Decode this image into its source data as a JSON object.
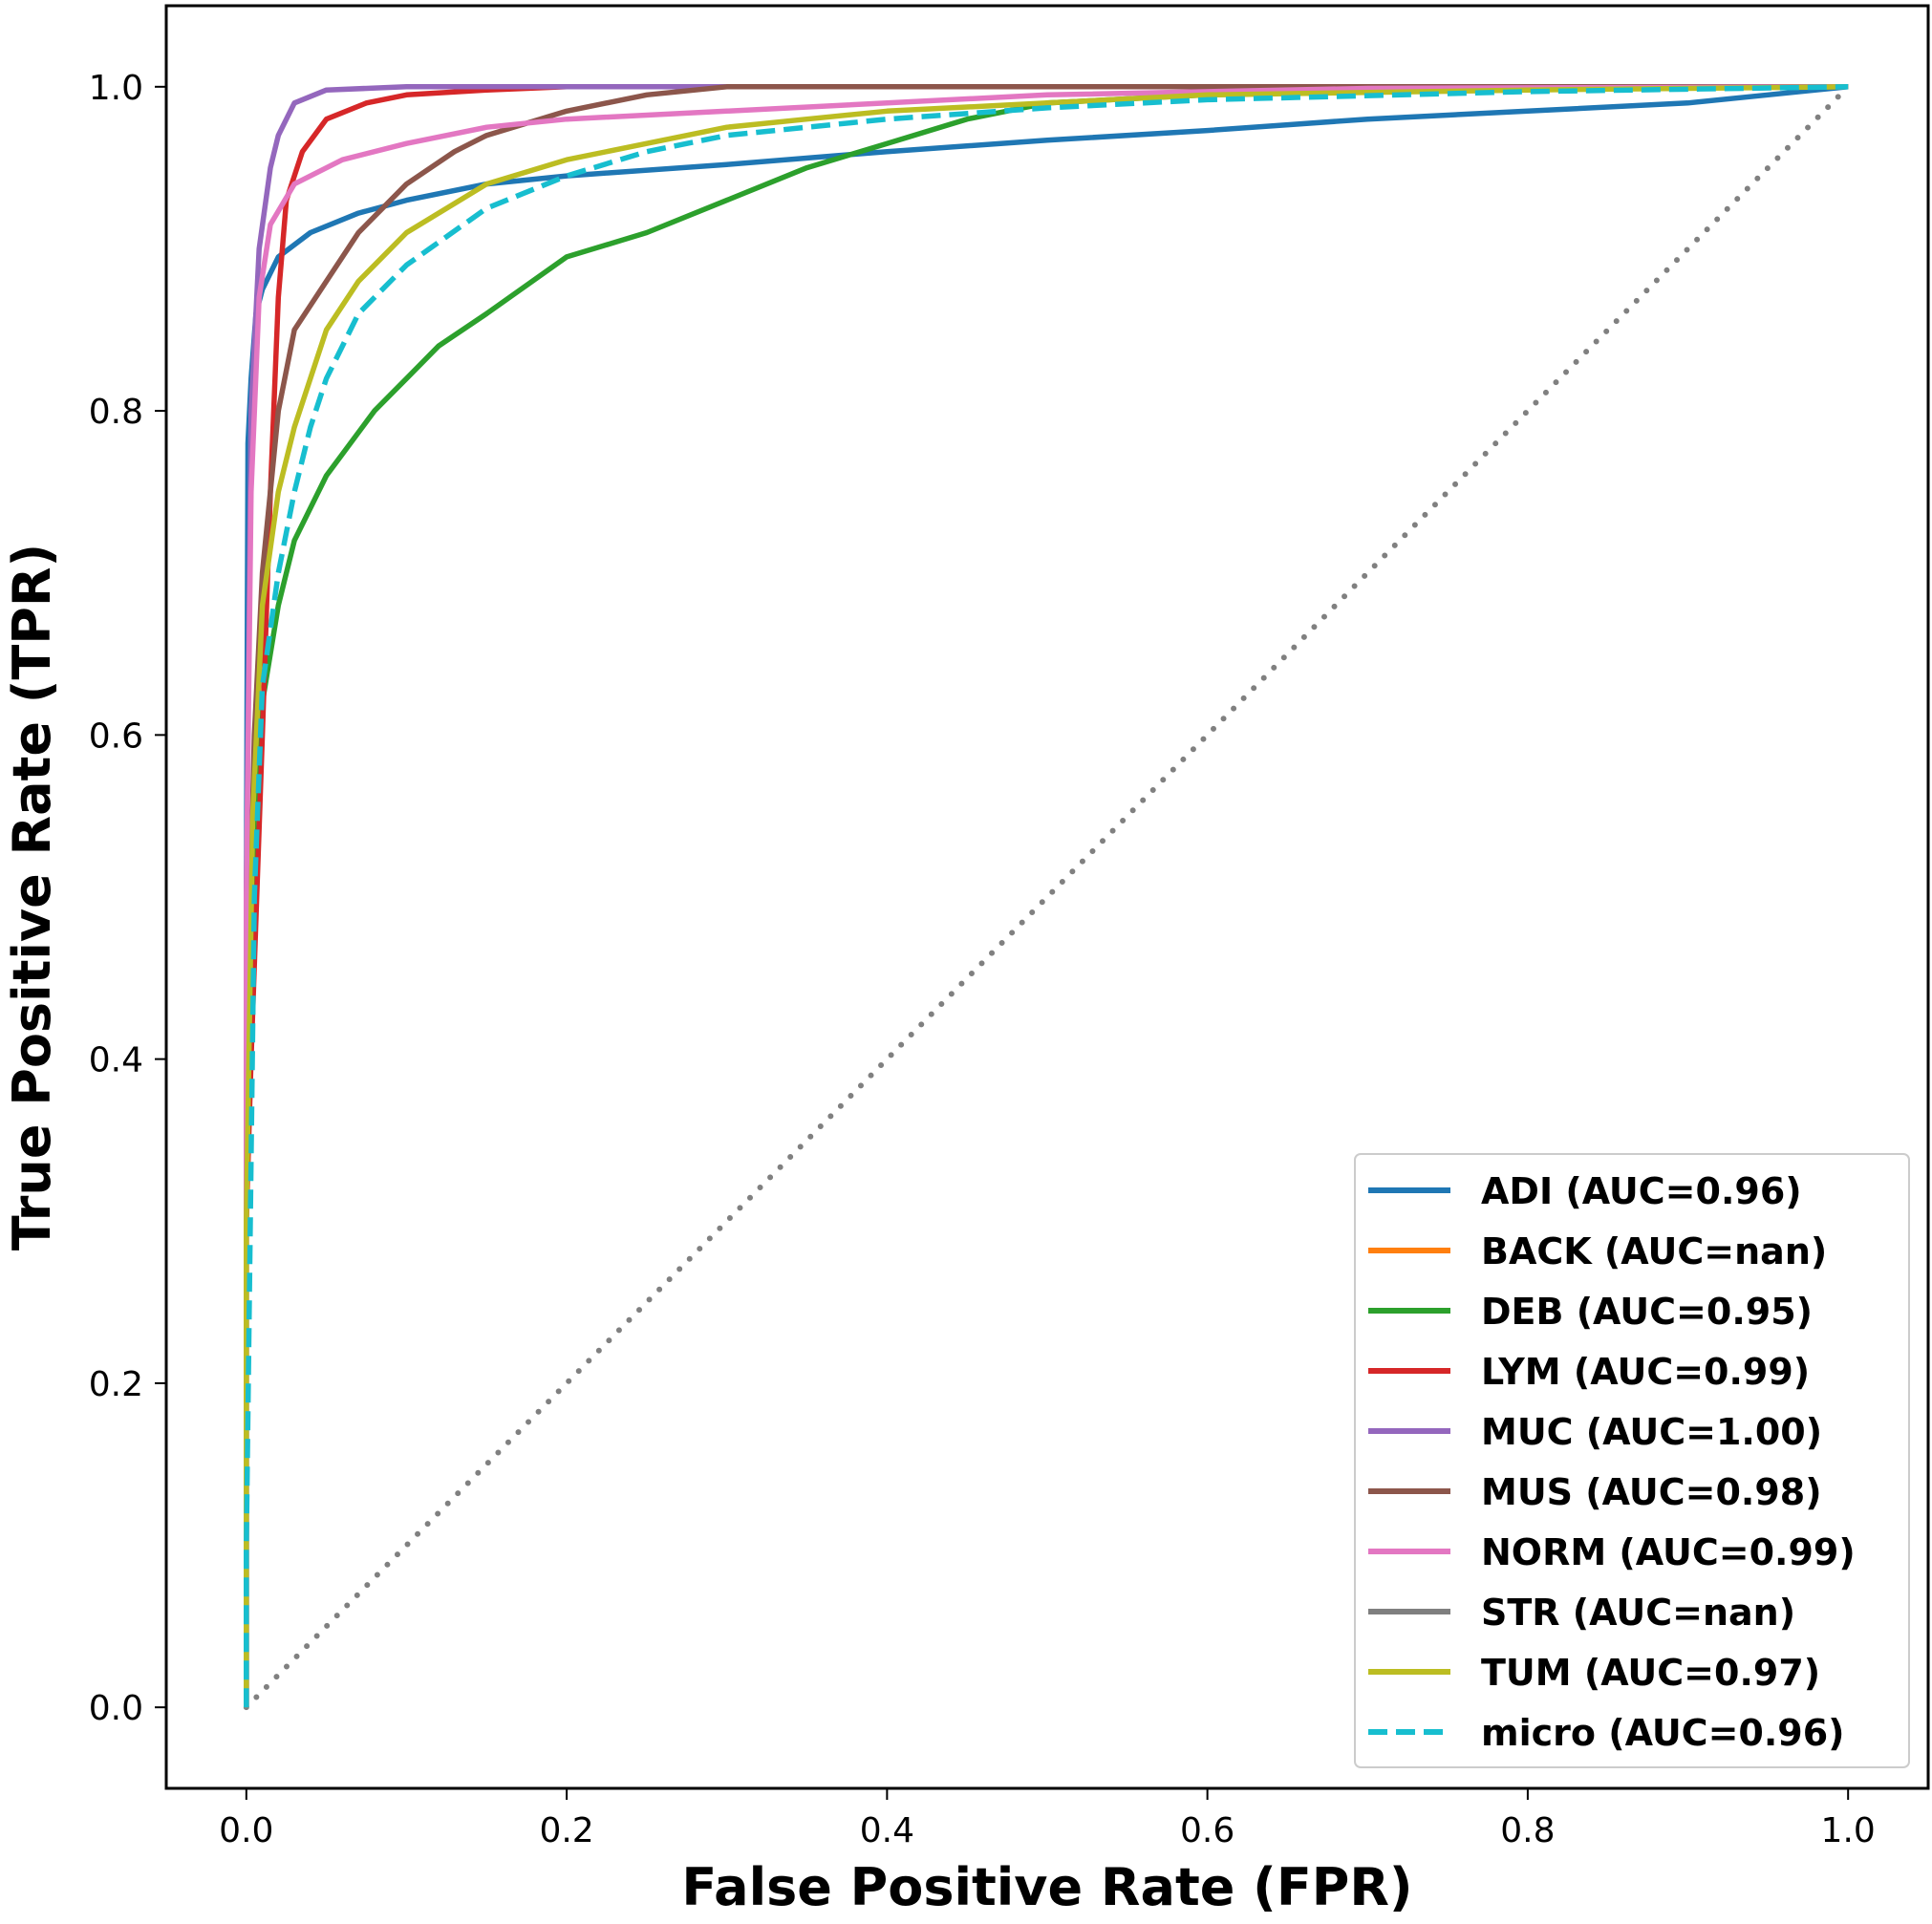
{
  "chart_data": {
    "type": "line",
    "title": "",
    "xlabel": "False Positive Rate (FPR)",
    "ylabel": "True Positive Rate (TPR)",
    "xlim": [
      -0.05,
      1.05
    ],
    "ylim": [
      -0.05,
      1.05
    ],
    "x_ticks": [
      0.0,
      0.2,
      0.4,
      0.6,
      0.8,
      1.0
    ],
    "y_ticks": [
      0.0,
      0.2,
      0.4,
      0.6,
      0.8,
      1.0
    ],
    "x_tick_labels": [
      "0.0",
      "0.2",
      "0.4",
      "0.6",
      "0.8",
      "1.0"
    ],
    "y_tick_labels": [
      "0.0",
      "0.2",
      "0.4",
      "0.6",
      "0.8",
      "1.0"
    ],
    "grid": false,
    "legend_position": "lower-right",
    "diagonal": {
      "style": "dotted",
      "color": "#808080",
      "points": [
        [
          0,
          0
        ],
        [
          1,
          1
        ]
      ]
    },
    "series": [
      {
        "name": "ADI (AUC=0.96)",
        "color": "#1f77b4",
        "style": "solid",
        "points": [
          [
            0,
            0
          ],
          [
            0,
            0.5
          ],
          [
            0.001,
            0.78
          ],
          [
            0.003,
            0.82
          ],
          [
            0.006,
            0.86
          ],
          [
            0.01,
            0.875
          ],
          [
            0.02,
            0.895
          ],
          [
            0.04,
            0.91
          ],
          [
            0.07,
            0.922
          ],
          [
            0.1,
            0.93
          ],
          [
            0.15,
            0.94
          ],
          [
            0.2,
            0.945
          ],
          [
            0.3,
            0.952
          ],
          [
            0.4,
            0.96
          ],
          [
            0.5,
            0.967
          ],
          [
            0.6,
            0.973
          ],
          [
            0.7,
            0.98
          ],
          [
            0.8,
            0.985
          ],
          [
            0.9,
            0.99
          ],
          [
            0.95,
            0.995
          ],
          [
            1,
            1
          ]
        ]
      },
      {
        "name": "BACK (AUC=nan)",
        "color": "#ff7f0e",
        "style": "solid",
        "points": []
      },
      {
        "name": "DEB (AUC=0.95)",
        "color": "#2ca02c",
        "style": "solid",
        "points": [
          [
            0,
            0
          ],
          [
            0,
            0.3
          ],
          [
            0.005,
            0.55
          ],
          [
            0.01,
            0.62
          ],
          [
            0.02,
            0.68
          ],
          [
            0.03,
            0.72
          ],
          [
            0.05,
            0.76
          ],
          [
            0.08,
            0.8
          ],
          [
            0.1,
            0.82
          ],
          [
            0.12,
            0.84
          ],
          [
            0.15,
            0.86
          ],
          [
            0.2,
            0.895
          ],
          [
            0.25,
            0.91
          ],
          [
            0.3,
            0.93
          ],
          [
            0.35,
            0.95
          ],
          [
            0.4,
            0.965
          ],
          [
            0.45,
            0.98
          ],
          [
            0.5,
            0.99
          ],
          [
            0.6,
            0.995
          ],
          [
            0.8,
            0.999
          ],
          [
            1,
            1
          ]
        ]
      },
      {
        "name": "LYM (AUC=0.99)",
        "color": "#d62728",
        "style": "solid",
        "points": [
          [
            0,
            0
          ],
          [
            0,
            0.3
          ],
          [
            0.003,
            0.4
          ],
          [
            0.01,
            0.6
          ],
          [
            0.015,
            0.75
          ],
          [
            0.02,
            0.87
          ],
          [
            0.025,
            0.93
          ],
          [
            0.035,
            0.96
          ],
          [
            0.05,
            0.98
          ],
          [
            0.075,
            0.99
          ],
          [
            0.1,
            0.995
          ],
          [
            0.15,
            0.998
          ],
          [
            0.2,
            1
          ],
          [
            1,
            1
          ]
        ]
      },
      {
        "name": "MUC (AUC=1.00)",
        "color": "#9467bd",
        "style": "solid",
        "points": [
          [
            0,
            0
          ],
          [
            0,
            0.5
          ],
          [
            0.003,
            0.8
          ],
          [
            0.008,
            0.9
          ],
          [
            0.015,
            0.95
          ],
          [
            0.02,
            0.97
          ],
          [
            0.03,
            0.99
          ],
          [
            0.05,
            0.998
          ],
          [
            0.1,
            1
          ],
          [
            1,
            1
          ]
        ]
      },
      {
        "name": "MUS (AUC=0.98)",
        "color": "#8c564b",
        "style": "solid",
        "points": [
          [
            0,
            0
          ],
          [
            0,
            0.4
          ],
          [
            0.005,
            0.6
          ],
          [
            0.01,
            0.7
          ],
          [
            0.02,
            0.8
          ],
          [
            0.03,
            0.85
          ],
          [
            0.05,
            0.88
          ],
          [
            0.07,
            0.91
          ],
          [
            0.1,
            0.94
          ],
          [
            0.13,
            0.96
          ],
          [
            0.15,
            0.97
          ],
          [
            0.2,
            0.985
          ],
          [
            0.25,
            0.995
          ],
          [
            0.3,
            1
          ],
          [
            1,
            1
          ]
        ]
      },
      {
        "name": "NORM (AUC=0.99)",
        "color": "#e377c2",
        "style": "solid",
        "points": [
          [
            0,
            0
          ],
          [
            0,
            0.5
          ],
          [
            0.003,
            0.75
          ],
          [
            0.008,
            0.87
          ],
          [
            0.015,
            0.915
          ],
          [
            0.03,
            0.94
          ],
          [
            0.06,
            0.955
          ],
          [
            0.1,
            0.965
          ],
          [
            0.15,
            0.975
          ],
          [
            0.2,
            0.98
          ],
          [
            0.3,
            0.985
          ],
          [
            0.5,
            0.995
          ],
          [
            0.7,
            0.999
          ],
          [
            1,
            1
          ]
        ]
      },
      {
        "name": "STR (AUC=nan)",
        "color": "#7f7f7f",
        "style": "solid",
        "points": []
      },
      {
        "name": "TUM (AUC=0.97)",
        "color": "#bcbd22",
        "style": "solid",
        "points": [
          [
            0,
            0
          ],
          [
            0,
            0.3
          ],
          [
            0.004,
            0.55
          ],
          [
            0.01,
            0.68
          ],
          [
            0.02,
            0.75
          ],
          [
            0.03,
            0.79
          ],
          [
            0.05,
            0.85
          ],
          [
            0.07,
            0.88
          ],
          [
            0.1,
            0.91
          ],
          [
            0.15,
            0.94
          ],
          [
            0.2,
            0.955
          ],
          [
            0.25,
            0.965
          ],
          [
            0.3,
            0.975
          ],
          [
            0.35,
            0.98
          ],
          [
            0.4,
            0.985
          ],
          [
            0.5,
            0.99
          ],
          [
            0.6,
            0.995
          ],
          [
            0.8,
            0.998
          ],
          [
            1,
            1
          ]
        ]
      },
      {
        "name": "micro (AUC=0.96)",
        "color": "#17becf",
        "style": "dashed",
        "points": [
          [
            0,
            0
          ],
          [
            0,
            0.1
          ],
          [
            0.005,
            0.5
          ],
          [
            0.01,
            0.63
          ],
          [
            0.02,
            0.7
          ],
          [
            0.03,
            0.75
          ],
          [
            0.04,
            0.79
          ],
          [
            0.05,
            0.82
          ],
          [
            0.07,
            0.86
          ],
          [
            0.1,
            0.89
          ],
          [
            0.15,
            0.925
          ],
          [
            0.2,
            0.945
          ],
          [
            0.25,
            0.96
          ],
          [
            0.3,
            0.97
          ],
          [
            0.4,
            0.98
          ],
          [
            0.5,
            0.987
          ],
          [
            0.6,
            0.992
          ],
          [
            0.8,
            0.997
          ],
          [
            1,
            1
          ]
        ]
      }
    ]
  }
}
